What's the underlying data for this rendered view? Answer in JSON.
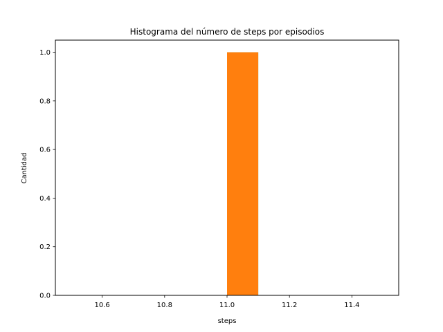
{
  "chart_data": {
    "type": "bar",
    "title": "Histograma del número de steps por episodios",
    "xlabel": "steps",
    "ylabel": "Cantidad",
    "xlim": [
      10.45,
      11.55
    ],
    "ylim": [
      0,
      1.05
    ],
    "x_ticks": [
      {
        "value": 10.6,
        "label": "10.6"
      },
      {
        "value": 10.8,
        "label": "10.8"
      },
      {
        "value": 11.0,
        "label": "11.0"
      },
      {
        "value": 11.2,
        "label": "11.2"
      },
      {
        "value": 11.4,
        "label": "11.4"
      }
    ],
    "y_ticks": [
      {
        "value": 0.0,
        "label": "0.0"
      },
      {
        "value": 0.2,
        "label": "0.2"
      },
      {
        "value": 0.4,
        "label": "0.4"
      },
      {
        "value": 0.6,
        "label": "0.6"
      },
      {
        "value": 0.8,
        "label": "0.8"
      },
      {
        "value": 1.0,
        "label": "1.0"
      }
    ],
    "grid": false,
    "series": [
      {
        "color": "#2ca02c",
        "bins": [
          {
            "x0": 11.0,
            "x1": 11.1,
            "count": 1
          }
        ]
      },
      {
        "color": "#ff7f0e",
        "bins": [
          {
            "x0": 11.0,
            "x1": 11.1,
            "count": 1
          }
        ]
      }
    ]
  }
}
